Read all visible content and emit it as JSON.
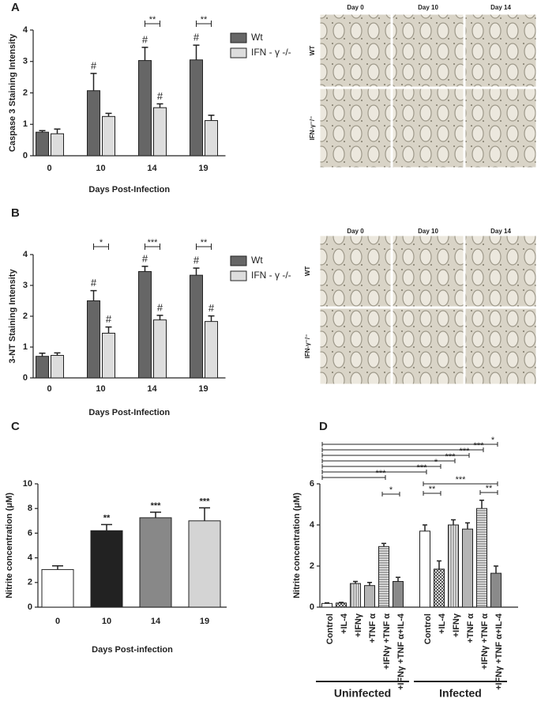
{
  "chart_data": [
    {
      "type": "bar",
      "panel_label": "A",
      "y_label": "Caspase 3 Staining Intensity",
      "x_label": "Days Post-Infection",
      "categories": [
        "0",
        "10",
        "14",
        "19"
      ],
      "series": [
        {
          "name": "Wt",
          "color": "#666666",
          "values": [
            0.75,
            2.07,
            3.03,
            3.05
          ],
          "errors": [
            0.05,
            0.55,
            0.42,
            0.47
          ],
          "markers": [
            null,
            "#",
            "#",
            "#"
          ]
        },
        {
          "name": "IFN - γ -/-",
          "color": "#dddddd",
          "values": [
            0.7,
            1.25,
            1.53,
            1.12
          ],
          "errors": [
            0.15,
            0.1,
            0.12,
            0.17
          ],
          "markers": [
            null,
            null,
            "#",
            null
          ]
        }
      ],
      "brackets": [
        {
          "text": "**",
          "category": 2
        },
        {
          "text": "**",
          "category": 3
        }
      ],
      "ylim": [
        0,
        4
      ],
      "yticks": [
        0,
        1,
        2,
        3,
        4
      ]
    },
    {
      "type": "bar",
      "panel_label": "B",
      "y_label": "3-NT Staining Intensity",
      "x_label": "Days Post-Infection",
      "categories": [
        "0",
        "10",
        "14",
        "19"
      ],
      "series": [
        {
          "name": "Wt",
          "color": "#666666",
          "values": [
            0.7,
            2.5,
            3.45,
            3.33
          ],
          "errors": [
            0.1,
            0.33,
            0.17,
            0.23
          ],
          "markers": [
            null,
            "#",
            "#",
            "#"
          ]
        },
        {
          "name": "IFN - γ -/-",
          "color": "#dddddd",
          "values": [
            0.73,
            1.45,
            1.88,
            1.83
          ],
          "errors": [
            0.08,
            0.2,
            0.15,
            0.18
          ],
          "markers": [
            null,
            "#",
            "#",
            "#"
          ]
        }
      ],
      "brackets": [
        {
          "text": "*",
          "category": 1
        },
        {
          "text": "***",
          "category": 2
        },
        {
          "text": "**",
          "category": 3
        }
      ],
      "ylim": [
        0,
        4
      ],
      "yticks": [
        0,
        1,
        2,
        3,
        4
      ]
    },
    {
      "type": "bar",
      "panel_label": "C",
      "y_label": "Nitrite concentration (μM)",
      "x_label": "Days Post-infection",
      "categories": [
        "0",
        "10",
        "14",
        "19"
      ],
      "values": [
        3.05,
        6.2,
        7.25,
        7.0
      ],
      "errors": [
        0.3,
        0.5,
        0.45,
        1.05
      ],
      "markers": [
        null,
        "**",
        "***",
        "***"
      ],
      "colors": [
        "#ffffff",
        "#222222",
        "#888888",
        "#d4d4d4"
      ],
      "ylim": [
        0,
        10
      ],
      "yticks": [
        0,
        2,
        4,
        6,
        8,
        10
      ]
    },
    {
      "type": "bar",
      "panel_label": "D",
      "y_label": "Nitrite concentration (μM)",
      "categories": [
        "Control",
        "+IL-4",
        "+IFNγ",
        "+TNF α",
        "+IFNγ +TNF α",
        "+IFNγ +TNF α+IL-4",
        "Control",
        "+IL-4",
        "+IFNγ",
        "+TNF α",
        "+IFNγ +TNF α",
        "+IFNγ +TNF α+IL-4"
      ],
      "values": [
        0.18,
        0.2,
        1.15,
        1.05,
        2.95,
        1.25,
        3.7,
        1.85,
        4.0,
        3.8,
        4.8,
        1.65
      ],
      "errors": [
        0.03,
        0.03,
        0.1,
        0.15,
        0.15,
        0.2,
        0.3,
        0.4,
        0.25,
        0.3,
        0.4,
        0.35
      ],
      "patterns": [
        "white",
        "crosshatch",
        "vertical-lines",
        "gray",
        "horizontal-lines",
        "dark-gray",
        "white",
        "crosshatch",
        "vertical-lines",
        "gray",
        "horizontal-lines",
        "dark-gray"
      ],
      "groups": [
        {
          "label": "Uninfected",
          "from": 0,
          "to": 5
        },
        {
          "label": "Infected",
          "from": 6,
          "to": 11
        }
      ],
      "brackets": [
        {
          "text": "*",
          "from": 0,
          "to": 11
        },
        {
          "text": "***",
          "from": 0,
          "to": 10
        },
        {
          "text": "***",
          "from": 0,
          "to": 9
        },
        {
          "text": "***",
          "from": 0,
          "to": 8
        },
        {
          "text": "*",
          "from": 0,
          "to": 7
        },
        {
          "text": "***",
          "from": 0,
          "to": 6
        },
        {
          "text": "***",
          "from": 0,
          "to": 4
        },
        {
          "text": "***",
          "from": 6,
          "to": 11
        },
        {
          "text": "**",
          "from": 10,
          "to": 11
        },
        {
          "text": "*",
          "from": 4,
          "to": 5
        },
        {
          "text": "**",
          "from": 6,
          "to": 7
        }
      ],
      "ylim": [
        0,
        6
      ],
      "yticks": [
        0,
        2,
        4,
        6
      ]
    }
  ],
  "micrographs": [
    {
      "columns": [
        "Day 0",
        "Day 10",
        "Day 14"
      ],
      "rows": [
        "WT",
        "IFN-γ⁻/⁻"
      ]
    },
    {
      "columns": [
        "Day 0",
        "Day 10",
        "Day 14"
      ],
      "rows": [
        "WT",
        "IFN-γ⁻/⁻"
      ]
    }
  ]
}
